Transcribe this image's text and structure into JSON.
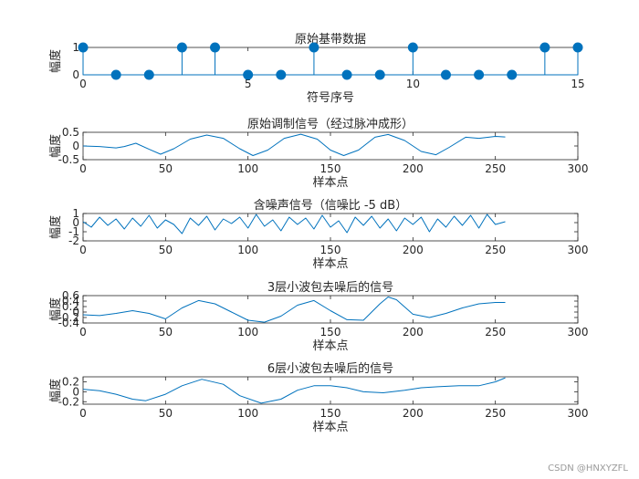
{
  "watermark": "CSDN @HNXYZFL",
  "colors": {
    "series": "#0072BD",
    "axis": "#262626"
  },
  "chart_data": [
    {
      "type": "stem",
      "title": "原始基带数据",
      "xlabel": "符号序号",
      "ylabel": "幅度",
      "xlim": [
        0,
        15
      ],
      "ylim": [
        0,
        1
      ],
      "xticks": [
        0,
        5,
        10,
        15
      ],
      "yticks": [
        0,
        1
      ],
      "x": [
        0,
        1,
        2,
        3,
        4,
        5,
        6,
        7,
        8,
        9,
        10,
        11,
        12,
        13,
        14,
        15
      ],
      "y": [
        1,
        0,
        0,
        1,
        1,
        0,
        0,
        1,
        0,
        0,
        1,
        0,
        0,
        0,
        1,
        1
      ]
    },
    {
      "type": "line",
      "title": "原始调制信号（经过脉冲成形）",
      "xlabel": "样本点",
      "ylabel": "幅度",
      "xlim": [
        0,
        300
      ],
      "ylim": [
        -0.5,
        0.5
      ],
      "xticks": [
        0,
        50,
        100,
        150,
        200,
        250,
        300
      ],
      "yticks": [
        -0.5,
        0,
        0.5
      ],
      "x": [
        0,
        10,
        20,
        25,
        32,
        40,
        47,
        55,
        65,
        75,
        85,
        95,
        103,
        112,
        122,
        132,
        142,
        150,
        158,
        167,
        177,
        185,
        195,
        205,
        214,
        222,
        232,
        240,
        250,
        256
      ],
      "y": [
        0.0,
        -0.02,
        -0.07,
        -0.02,
        0.1,
        -0.12,
        -0.3,
        -0.1,
        0.25,
        0.4,
        0.28,
        -0.1,
        -0.35,
        -0.15,
        0.28,
        0.43,
        0.25,
        -0.15,
        -0.35,
        -0.15,
        0.32,
        0.42,
        0.2,
        -0.2,
        -0.32,
        -0.05,
        0.32,
        0.28,
        0.35,
        0.33
      ]
    },
    {
      "type": "line",
      "title": "含噪声信号（信噪比 -5 dB）",
      "xlabel": "样本点",
      "ylabel": "幅度",
      "xlim": [
        0,
        300
      ],
      "ylim": [
        -2,
        1
      ],
      "xticks": [
        0,
        50,
        100,
        150,
        200,
        250,
        300
      ],
      "yticks": [
        -2,
        -1,
        0,
        1
      ],
      "x": [
        0,
        5,
        10,
        15,
        20,
        25,
        30,
        35,
        40,
        45,
        50,
        55,
        60,
        65,
        70,
        75,
        80,
        85,
        90,
        95,
        100,
        105,
        110,
        115,
        120,
        125,
        130,
        135,
        140,
        145,
        150,
        155,
        160,
        165,
        170,
        175,
        180,
        185,
        190,
        195,
        200,
        205,
        210,
        215,
        220,
        225,
        230,
        235,
        240,
        245,
        250,
        256
      ],
      "y": [
        0.1,
        -0.5,
        0.6,
        -0.3,
        0.4,
        -0.7,
        0.5,
        -0.4,
        0.8,
        -0.6,
        0.3,
        -0.2,
        -1.2,
        0.5,
        -0.3,
        0.7,
        -0.8,
        0.4,
        -0.1,
        0.6,
        -0.6,
        0.9,
        -0.4,
        0.3,
        -0.9,
        0.6,
        -0.2,
        0.5,
        -0.7,
        0.8,
        -0.5,
        0.2,
        -1.1,
        0.6,
        -0.3,
        0.7,
        -0.6,
        0.4,
        -0.9,
        0.5,
        -0.2,
        0.6,
        -1.0,
        0.4,
        -0.5,
        0.7,
        -0.3,
        0.8,
        -0.6,
        0.9,
        -0.2,
        0.1
      ]
    },
    {
      "type": "line",
      "title": "3层小波包去噪后的信号",
      "xlabel": "样本点",
      "ylabel": "幅度",
      "xlim": [
        0,
        300
      ],
      "ylim": [
        -0.4,
        0.6
      ],
      "xticks": [
        0,
        50,
        100,
        150,
        200,
        250,
        300
      ],
      "yticks": [
        -0.4,
        -0.2,
        0,
        0.2,
        0.4,
        0.6
      ],
      "x": [
        0,
        10,
        20,
        30,
        40,
        50,
        60,
        70,
        80,
        90,
        100,
        110,
        120,
        130,
        140,
        150,
        160,
        170,
        180,
        185,
        190,
        200,
        210,
        220,
        230,
        240,
        250,
        256
      ],
      "y": [
        -0.1,
        -0.13,
        -0.05,
        0.05,
        -0.05,
        -0.25,
        0.15,
        0.42,
        0.3,
        0.0,
        -0.3,
        -0.37,
        -0.15,
        0.25,
        0.42,
        0.05,
        -0.28,
        -0.3,
        0.3,
        0.55,
        0.45,
        -0.08,
        -0.2,
        -0.05,
        0.15,
        0.3,
        0.35,
        0.35
      ]
    },
    {
      "type": "line",
      "title": "6层小波包去噪后的信号",
      "xlabel": "样本点",
      "ylabel": "幅度",
      "xlim": [
        0,
        300
      ],
      "ylim": [
        -0.25,
        0.3
      ],
      "xticks": [
        0,
        50,
        100,
        150,
        200,
        250,
        300
      ],
      "yticks": [
        -0.2,
        0,
        0.2
      ],
      "x": [
        0,
        10,
        20,
        30,
        38,
        50,
        60,
        72,
        85,
        95,
        108,
        120,
        130,
        140,
        150,
        160,
        170,
        182,
        195,
        205,
        215,
        228,
        240,
        250,
        256
      ],
      "y": [
        0.05,
        0.02,
        -0.05,
        -0.15,
        -0.18,
        -0.05,
        0.12,
        0.25,
        0.15,
        -0.08,
        -0.23,
        -0.15,
        0.03,
        0.12,
        0.12,
        0.08,
        0.0,
        -0.02,
        0.03,
        0.08,
        0.1,
        0.12,
        0.12,
        0.2,
        0.28
      ]
    }
  ]
}
